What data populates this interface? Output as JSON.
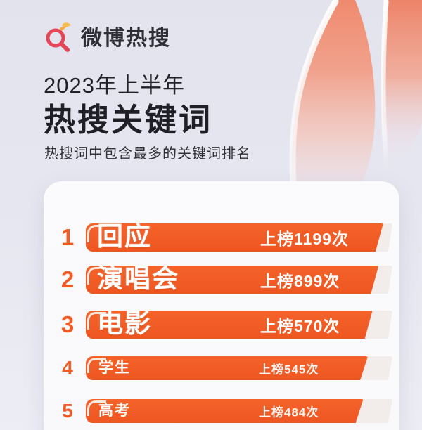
{
  "header": {
    "logo": {
      "label": "微博热搜",
      "icon": "hot-search-magnifier-icon"
    },
    "period": "2023年上半年",
    "title": "热搜关键词",
    "subtitle": "热搜词中包含最多的关键词排名"
  },
  "colors": {
    "accent_orange": "#F15A24",
    "bar_track": "#F2EDEB",
    "card_bg": "#FBFBFD",
    "background_top": "#E3E3EE",
    "background_bottom": "#EDEDF5",
    "logo_red": "#E24658",
    "logo_yellow": "#F6BE52",
    "flame_salmon": "#EE8067",
    "text_dark": "#1F1F26"
  },
  "chart_data": {
    "type": "bar",
    "orientation": "horizontal",
    "title": "2023年上半年 热搜关键词",
    "subtitle": "热搜词中包含最多的关键词排名",
    "categories": [
      "回应",
      "演唱会",
      "电影",
      "学生",
      "高考"
    ],
    "values": [
      1199,
      899,
      570,
      545,
      484
    ],
    "value_label_format": "上榜{value}次",
    "bar_fill_pct": [
      97,
      95.5,
      93.5,
      92,
      90.5
    ],
    "legend": "none",
    "grid": false
  },
  "list": {
    "items": [
      {
        "rank": "1",
        "keyword": "回应",
        "count_prefix": "上榜",
        "count_value": "1199",
        "count_suffix": "次",
        "fill_pct": 97
      },
      {
        "rank": "2",
        "keyword": "演唱会",
        "count_prefix": "上榜",
        "count_value": "899",
        "count_suffix": "次",
        "fill_pct": 95.5
      },
      {
        "rank": "3",
        "keyword": "电影",
        "count_prefix": "上榜",
        "count_value": "570",
        "count_suffix": "次",
        "fill_pct": 93.5
      },
      {
        "rank": "4",
        "keyword": "学生",
        "count_prefix": "上榜",
        "count_value": "545",
        "count_suffix": "次",
        "fill_pct": 92
      },
      {
        "rank": "5",
        "keyword": "高考",
        "count_prefix": "上榜",
        "count_value": "484",
        "count_suffix": "次",
        "fill_pct": 90.5
      }
    ]
  }
}
